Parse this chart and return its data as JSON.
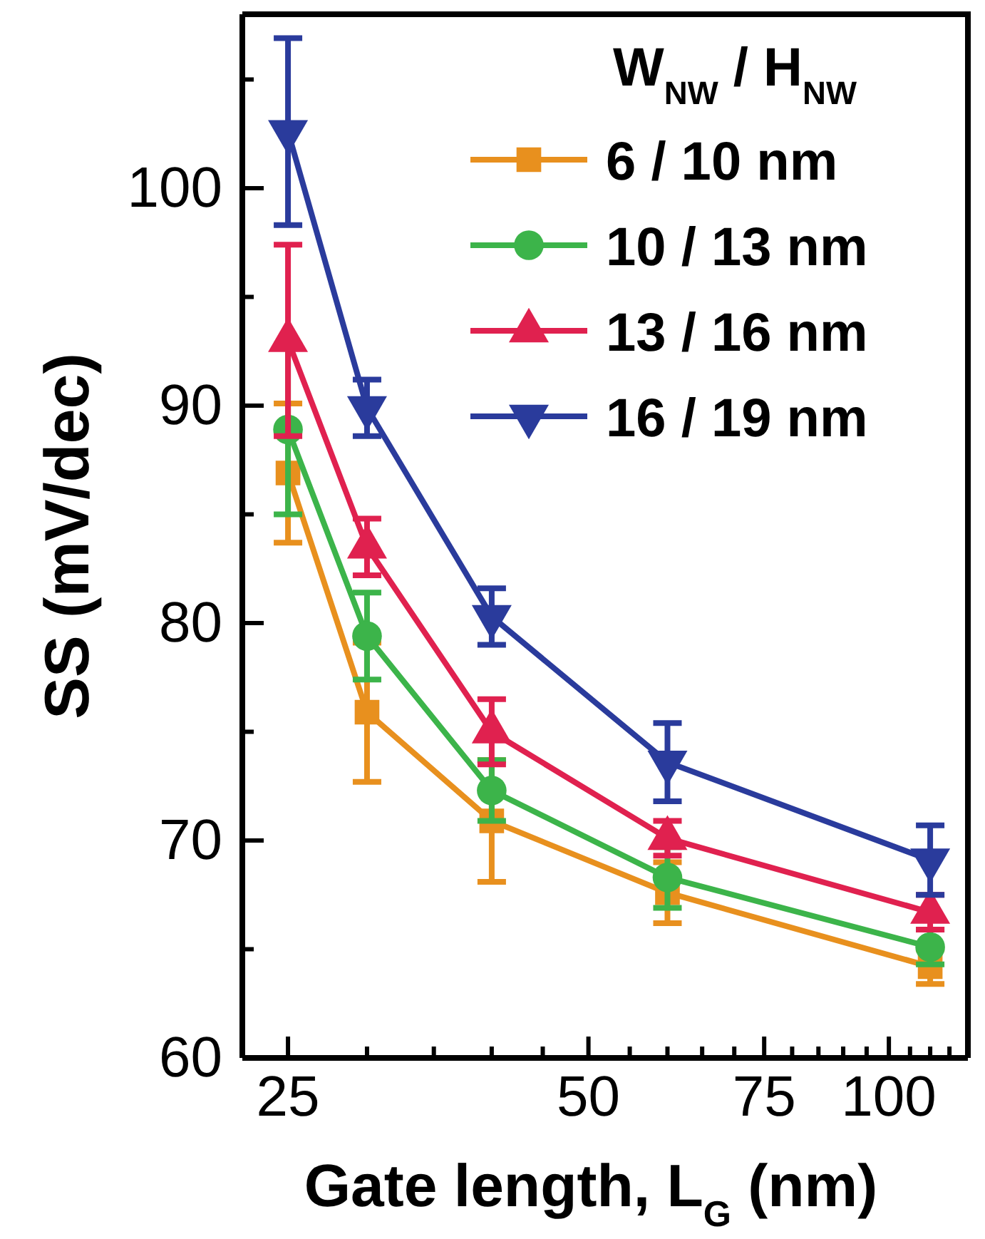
{
  "chart_data": {
    "type": "line",
    "xlabel": "Gate length, L$_{G}$ (nm)",
    "ylabel": "SS (mV/dec)",
    "legend_title": "W$_{NW}$ / H$_{NW}$",
    "legend": "top right",
    "log": "x",
    "grid": false,
    "line_style": "solid",
    "x": [
      25,
      30,
      40,
      60,
      110
    ],
    "xlim": [
      22.5,
      120
    ],
    "xticks": [
      25,
      {
        "value": 30,
        "label": null
      },
      {
        "value": 35,
        "label": null
      },
      {
        "value": 40,
        "label": null
      },
      {
        "value": 45,
        "label": null
      },
      50,
      {
        "value": 55,
        "label": null
      },
      {
        "value": 60,
        "label": null
      },
      {
        "value": 65,
        "label": null
      },
      {
        "value": 70,
        "label": null
      },
      75,
      {
        "value": 80,
        "label": null
      },
      {
        "value": 85,
        "label": null
      },
      {
        "value": 90,
        "label": null
      },
      {
        "value": 95,
        "label": null
      },
      100,
      {
        "value": 105,
        "label": null
      },
      {
        "value": 110,
        "label": null
      },
      {
        "value": 115,
        "label": null
      },
      {
        "value": 120,
        "label": null
      }
    ],
    "ylim": [
      60,
      108
    ],
    "yticks": [
      60,
      {
        "value": 65,
        "label": null
      },
      70,
      {
        "value": 75,
        "label": null
      },
      80,
      {
        "value": 85,
        "label": null
      },
      90,
      {
        "value": 95,
        "label": null
      },
      100,
      {
        "value": 105,
        "label": null
      }
    ],
    "series": [
      {
        "name": "6 / 10 nm",
        "color": "#e8901e",
        "marker": "square",
        "values": [
          86.9,
          75.9,
          70.9,
          67.6,
          64.2
        ],
        "errors": [
          3.2,
          3.2,
          2.8,
          1.4,
          0.8
        ]
      },
      {
        "name": "10 / 13 nm",
        "color": "#3cb44a",
        "marker": "circle",
        "values": [
          88.9,
          79.4,
          72.3,
          68.3,
          65.1
        ],
        "errors": [
          3.9,
          2,
          1.4,
          1.4,
          0.8
        ]
      },
      {
        "name": "13 / 16 nm",
        "color": "#e0214f",
        "marker": "triangle",
        "values": [
          93,
          83.5,
          75,
          70.1,
          66.7
        ],
        "errors": [
          4.4,
          1.3,
          1.5,
          0.8,
          0.8
        ]
      },
      {
        "name": "16 / 19 nm",
        "color": "#2a3b9c",
        "marker": "triangle-down",
        "values": [
          102.6,
          89.9,
          80.3,
          73.6,
          69.1
        ],
        "errors": [
          4.3,
          1.3,
          1.3,
          1.8,
          1.6
        ]
      }
    ]
  }
}
